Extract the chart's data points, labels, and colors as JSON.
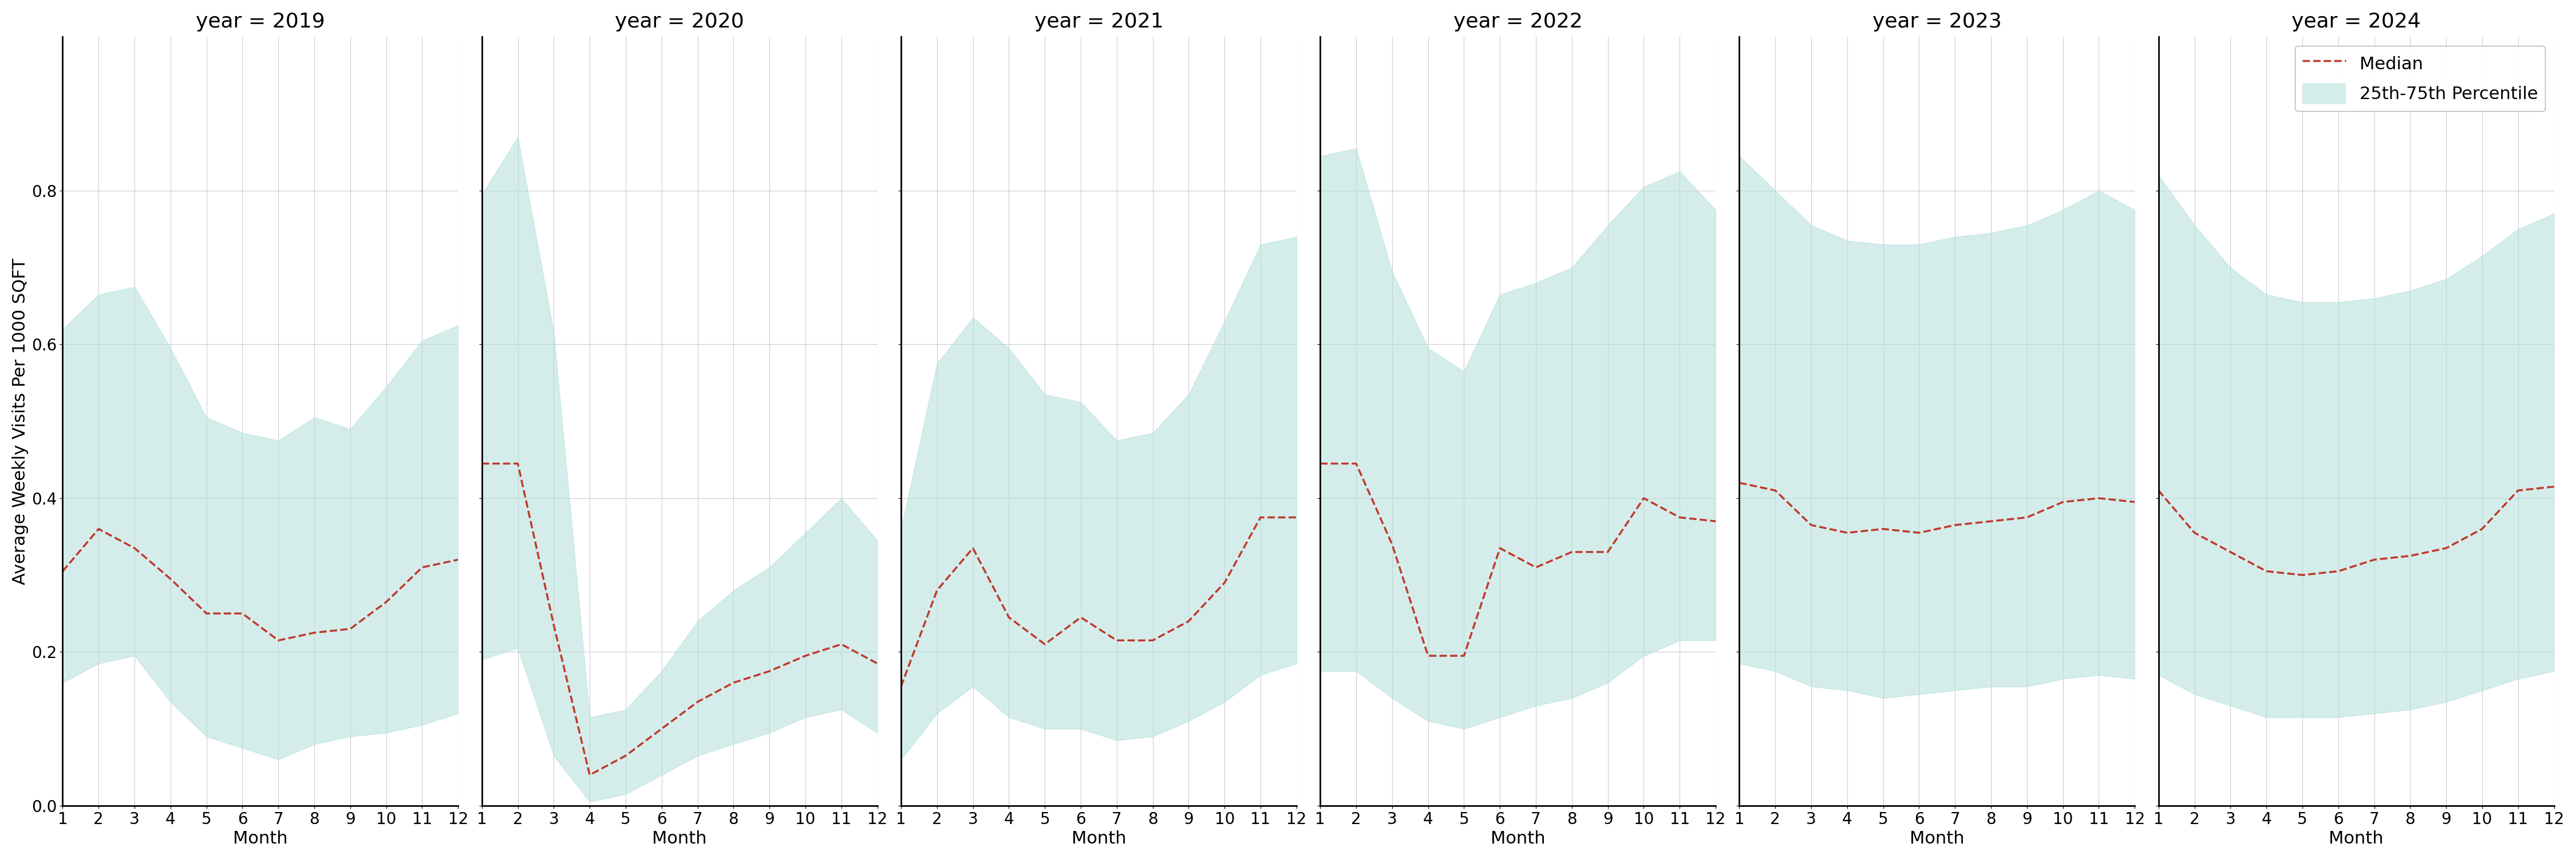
{
  "years": [
    2019,
    2020,
    2021,
    2022,
    2023,
    2024
  ],
  "months": [
    1,
    2,
    3,
    4,
    5,
    6,
    7,
    8,
    9,
    10,
    11,
    12
  ],
  "median": {
    "2019": [
      0.305,
      0.36,
      0.335,
      0.295,
      0.25,
      0.25,
      0.215,
      0.225,
      0.23,
      0.265,
      0.31,
      0.32
    ],
    "2020": [
      0.445,
      0.445,
      0.235,
      0.04,
      0.065,
      0.1,
      0.135,
      0.16,
      0.175,
      0.195,
      0.21,
      0.185
    ],
    "2021": [
      0.155,
      0.28,
      0.335,
      0.245,
      0.21,
      0.245,
      0.215,
      0.215,
      0.24,
      0.29,
      0.375,
      0.375
    ],
    "2022": [
      0.445,
      0.445,
      0.34,
      0.195,
      0.195,
      0.335,
      0.31,
      0.33,
      0.33,
      0.4,
      0.375,
      0.37
    ],
    "2023": [
      0.42,
      0.41,
      0.365,
      0.355,
      0.36,
      0.355,
      0.365,
      0.37,
      0.375,
      0.395,
      0.4,
      0.395
    ],
    "2024": [
      0.41,
      0.355,
      0.33,
      0.305,
      0.3,
      0.305,
      0.32,
      0.325,
      0.335,
      0.36,
      0.41,
      0.415
    ]
  },
  "p25": {
    "2019": [
      0.16,
      0.185,
      0.195,
      0.135,
      0.09,
      0.075,
      0.06,
      0.08,
      0.09,
      0.095,
      0.105,
      0.12
    ],
    "2020": [
      0.19,
      0.205,
      0.065,
      0.005,
      0.015,
      0.04,
      0.065,
      0.08,
      0.095,
      0.115,
      0.125,
      0.095
    ],
    "2021": [
      0.06,
      0.12,
      0.155,
      0.115,
      0.1,
      0.1,
      0.085,
      0.09,
      0.11,
      0.135,
      0.17,
      0.185
    ],
    "2022": [
      0.175,
      0.175,
      0.14,
      0.11,
      0.1,
      0.115,
      0.13,
      0.14,
      0.16,
      0.195,
      0.215,
      0.215
    ],
    "2023": [
      0.185,
      0.175,
      0.155,
      0.15,
      0.14,
      0.145,
      0.15,
      0.155,
      0.155,
      0.165,
      0.17,
      0.165
    ],
    "2024": [
      0.17,
      0.145,
      0.13,
      0.115,
      0.115,
      0.115,
      0.12,
      0.125,
      0.135,
      0.15,
      0.165,
      0.175
    ]
  },
  "p75": {
    "2019": [
      0.62,
      0.665,
      0.675,
      0.595,
      0.505,
      0.485,
      0.475,
      0.505,
      0.49,
      0.545,
      0.605,
      0.625
    ],
    "2020": [
      0.795,
      0.87,
      0.615,
      0.115,
      0.125,
      0.175,
      0.24,
      0.28,
      0.31,
      0.355,
      0.4,
      0.345
    ],
    "2021": [
      0.36,
      0.575,
      0.635,
      0.595,
      0.535,
      0.525,
      0.475,
      0.485,
      0.535,
      0.63,
      0.73,
      0.74
    ],
    "2022": [
      0.845,
      0.855,
      0.695,
      0.595,
      0.565,
      0.665,
      0.68,
      0.7,
      0.755,
      0.805,
      0.825,
      0.775
    ],
    "2023": [
      0.845,
      0.8,
      0.755,
      0.735,
      0.73,
      0.73,
      0.74,
      0.745,
      0.755,
      0.775,
      0.8,
      0.775
    ],
    "2024": [
      0.82,
      0.755,
      0.7,
      0.665,
      0.655,
      0.655,
      0.66,
      0.67,
      0.685,
      0.715,
      0.75,
      0.77
    ]
  },
  "fill_color": "#b2dfdb",
  "fill_alpha": 0.55,
  "line_color": "#c0392b",
  "line_style": "--",
  "line_width": 2.5,
  "ylabel": "Average Weekly Visits Per 1000 SQFT",
  "xlabel": "Month",
  "ylim": [
    0.0,
    1.0
  ],
  "yticks": [
    0.0,
    0.2,
    0.4,
    0.6,
    0.8
  ],
  "xticks": [
    1,
    2,
    3,
    4,
    5,
    6,
    7,
    8,
    9,
    10,
    11,
    12
  ],
  "grid_color": "#cccccc",
  "title_fontsize": 26,
  "label_fontsize": 22,
  "tick_fontsize": 20,
  "legend_fontsize": 22
}
